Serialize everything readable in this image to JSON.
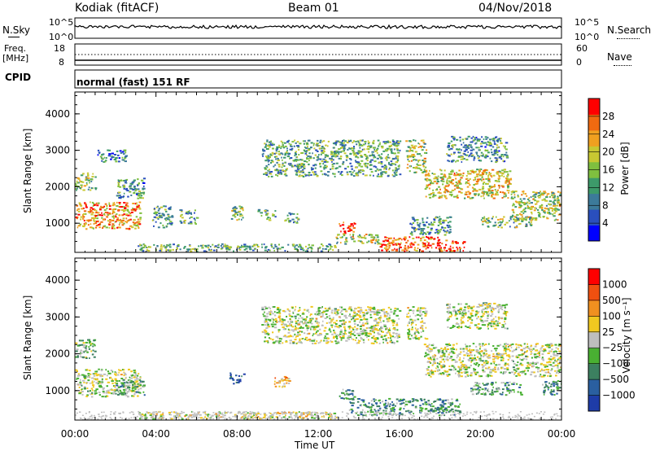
{
  "header": {
    "station": "Kodiak (fitACF)",
    "beam": "Beam 01",
    "date": "04/Nov/2018"
  },
  "top_panels": {
    "nsky": {
      "label": "N.Sky",
      "top_tick": "10^5",
      "bottom_tick": "10^0"
    },
    "nsearch": {
      "label": "N.Search",
      "top_tick": "10^5",
      "bottom_tick": "10^0"
    },
    "freq": {
      "label_line1": "Freq.",
      "label_line2": "[MHz]",
      "top_tick": "18",
      "bottom_tick": "8"
    },
    "nave": {
      "label": "Nave",
      "top_tick": "60",
      "bottom_tick": "0"
    },
    "cpid": {
      "label": "CPID",
      "mode": "normal (fast) 151 RF"
    }
  },
  "chart_data": [
    {
      "type": "heatmap",
      "name": "power",
      "xlabel": "Time UT",
      "ylabel": "Slant Range [km]",
      "x_tick_labels": [
        "00:00",
        "04:00",
        "08:00",
        "12:00",
        "16:00",
        "20:00",
        "00:00"
      ],
      "y_tick_labels": [
        "1000",
        "2000",
        "3000",
        "4000"
      ],
      "y_ticks": [
        1000,
        2000,
        3000,
        4000
      ],
      "xlim_hours": [
        0,
        24
      ],
      "ylim": [
        200,
        4600
      ],
      "colorbar": {
        "label": "Power [dB]",
        "tick_labels": [
          "4",
          "8",
          "12",
          "16",
          "20",
          "24",
          "28"
        ],
        "ticks": [
          4,
          8,
          12,
          16,
          20,
          24,
          28
        ],
        "range": [
          0,
          32
        ],
        "colors": [
          "#0000ff",
          "#2a4fbd",
          "#3c7a9a",
          "#3d9a6a",
          "#7fbf3f",
          "#c8c832",
          "#f0a020",
          "#f06a10",
          "#ff0000"
        ]
      },
      "regions": [
        {
          "t0": 0.0,
          "t1": 3.2,
          "r0": 850,
          "r1": 1600,
          "level": 0.75
        },
        {
          "t0": 0.0,
          "t1": 1.0,
          "r0": 1900,
          "r1": 2400,
          "level": 0.5
        },
        {
          "t0": 2.0,
          "t1": 3.4,
          "r0": 1700,
          "r1": 2250,
          "level": 0.35
        },
        {
          "t0": 1.1,
          "t1": 2.5,
          "r0": 2700,
          "r1": 3050,
          "level": 0.3
        },
        {
          "t0": 3.8,
          "t1": 4.8,
          "r0": 900,
          "r1": 1500,
          "level": 0.4
        },
        {
          "t0": 5.1,
          "t1": 6.0,
          "r0": 1000,
          "r1": 1400,
          "level": 0.35
        },
        {
          "t0": 7.6,
          "t1": 8.3,
          "r0": 1100,
          "r1": 1500,
          "level": 0.5
        },
        {
          "t0": 9.0,
          "t1": 9.9,
          "r0": 1100,
          "r1": 1400,
          "level": 0.45
        },
        {
          "t0": 10.3,
          "t1": 11.0,
          "r0": 1000,
          "r1": 1300,
          "level": 0.4
        },
        {
          "t0": 9.2,
          "t1": 16.0,
          "r0": 2300,
          "r1": 3300,
          "level": 0.4
        },
        {
          "t0": 16.3,
          "t1": 17.3,
          "r0": 2400,
          "r1": 3300,
          "level": 0.55
        },
        {
          "t0": 17.2,
          "t1": 21.5,
          "r0": 1700,
          "r1": 2500,
          "level": 0.65
        },
        {
          "t0": 21.5,
          "t1": 24.0,
          "r0": 1100,
          "r1": 1900,
          "level": 0.55
        },
        {
          "t0": 18.3,
          "t1": 21.3,
          "r0": 2700,
          "r1": 3400,
          "level": 0.35
        },
        {
          "t0": 13.0,
          "t1": 13.8,
          "r0": 750,
          "r1": 1050,
          "level": 0.95
        },
        {
          "t0": 12.8,
          "t1": 15.0,
          "r0": 450,
          "r1": 750,
          "level": 0.55
        },
        {
          "t0": 15.0,
          "t1": 18.0,
          "r0": 250,
          "r1": 650,
          "level": 0.85
        },
        {
          "t0": 17.8,
          "t1": 19.2,
          "r0": 250,
          "r1": 550,
          "level": 0.9
        },
        {
          "t0": 3.0,
          "t1": 13.0,
          "r0": 250,
          "r1": 450,
          "level": 0.4
        },
        {
          "t0": 16.5,
          "t1": 18.5,
          "r0": 700,
          "r1": 1200,
          "level": 0.35
        },
        {
          "t0": 20.0,
          "t1": 22.5,
          "r0": 900,
          "r1": 1200,
          "level": 0.45
        }
      ]
    },
    {
      "type": "heatmap",
      "name": "velocity",
      "xlabel": "Time UT",
      "ylabel": "Slant Range [km]",
      "x_tick_labels": [
        "00:00",
        "04:00",
        "08:00",
        "12:00",
        "16:00",
        "20:00",
        "00:00"
      ],
      "y_tick_labels": [
        "1000",
        "2000",
        "3000",
        "4000"
      ],
      "y_ticks": [
        1000,
        2000,
        3000,
        4000
      ],
      "xlim_hours": [
        0,
        24
      ],
      "ylim": [
        200,
        4600
      ],
      "colorbar": {
        "label": "Velocity [m s⁻¹]",
        "tick_labels": [
          "1000",
          "500",
          "100",
          "25",
          "−25",
          "−100",
          "−500",
          "−1000"
        ],
        "colors": [
          "#1e3ca8",
          "#2a5fa0",
          "#3c8060",
          "#49b032",
          "#bebebe",
          "#f0c820",
          "#f09020",
          "#f05010",
          "#ff0000"
        ]
      },
      "regions": [
        {
          "t0": 0.0,
          "t1": 3.2,
          "r0": 850,
          "r1": 1600,
          "level": 0.5
        },
        {
          "t0": 0.0,
          "t1": 1.0,
          "r0": 1900,
          "r1": 2400,
          "level": 0.4
        },
        {
          "t0": 2.0,
          "t1": 3.4,
          "r0": 900,
          "r1": 1300,
          "level": 0.35
        },
        {
          "t0": 9.2,
          "t1": 16.0,
          "r0": 2300,
          "r1": 3300,
          "level": 0.5
        },
        {
          "t0": 16.3,
          "t1": 17.3,
          "r0": 2400,
          "r1": 3300,
          "level": 0.5
        },
        {
          "t0": 17.2,
          "t1": 24.0,
          "r0": 1400,
          "r1": 2300,
          "level": 0.5
        },
        {
          "t0": 18.3,
          "t1": 21.3,
          "r0": 2700,
          "r1": 3400,
          "level": 0.5
        },
        {
          "t0": 7.6,
          "t1": 8.3,
          "r0": 1200,
          "r1": 1500,
          "level": 0.15
        },
        {
          "t0": 9.8,
          "t1": 10.6,
          "r0": 1100,
          "r1": 1400,
          "level": 0.65
        },
        {
          "t0": 13.0,
          "t1": 13.8,
          "r0": 800,
          "r1": 1050,
          "level": 0.3
        },
        {
          "t0": 13.5,
          "t1": 19.0,
          "r0": 350,
          "r1": 800,
          "level": 0.3
        },
        {
          "t0": 3.0,
          "t1": 13.0,
          "r0": 250,
          "r1": 450,
          "level": 0.55
        },
        {
          "t0": 19.5,
          "t1": 22.0,
          "r0": 900,
          "r1": 1250,
          "level": 0.35
        },
        {
          "t0": 23.0,
          "t1": 24.0,
          "r0": 900,
          "r1": 1300,
          "level": 0.3
        }
      ]
    }
  ]
}
